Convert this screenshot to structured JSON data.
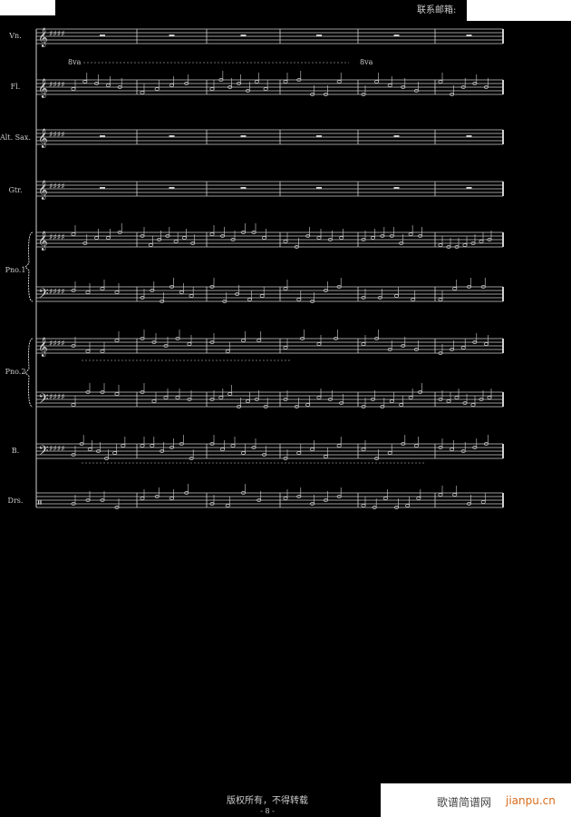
{
  "header": {
    "contact_label": "联系邮箱:"
  },
  "instruments": [
    {
      "label": "Vn.",
      "staves": 1
    },
    {
      "label": "Fl.",
      "staves": 1
    },
    {
      "label": "Alt. Sax.",
      "staves": 1
    },
    {
      "label": "Gtr.",
      "staves": 1
    },
    {
      "label": "Pno.1",
      "staves": 2
    },
    {
      "label": "Pno.2",
      "staves": 2
    },
    {
      "label": "B.",
      "staves": 1
    },
    {
      "label": "Drs.",
      "staves": 1
    }
  ],
  "ottava": {
    "start_label": "8va",
    "end_label": "8va"
  },
  "footer": {
    "copyright": "版权所有，不得转载",
    "page_number": "- 8 -"
  },
  "watermark": {
    "site_cn": "歌谱简谱网",
    "site_en": "jianpu.cn"
  },
  "colors": {
    "background": "#000000",
    "ink": "#d0d0d0",
    "watermark_accent": "#d86a1a"
  }
}
